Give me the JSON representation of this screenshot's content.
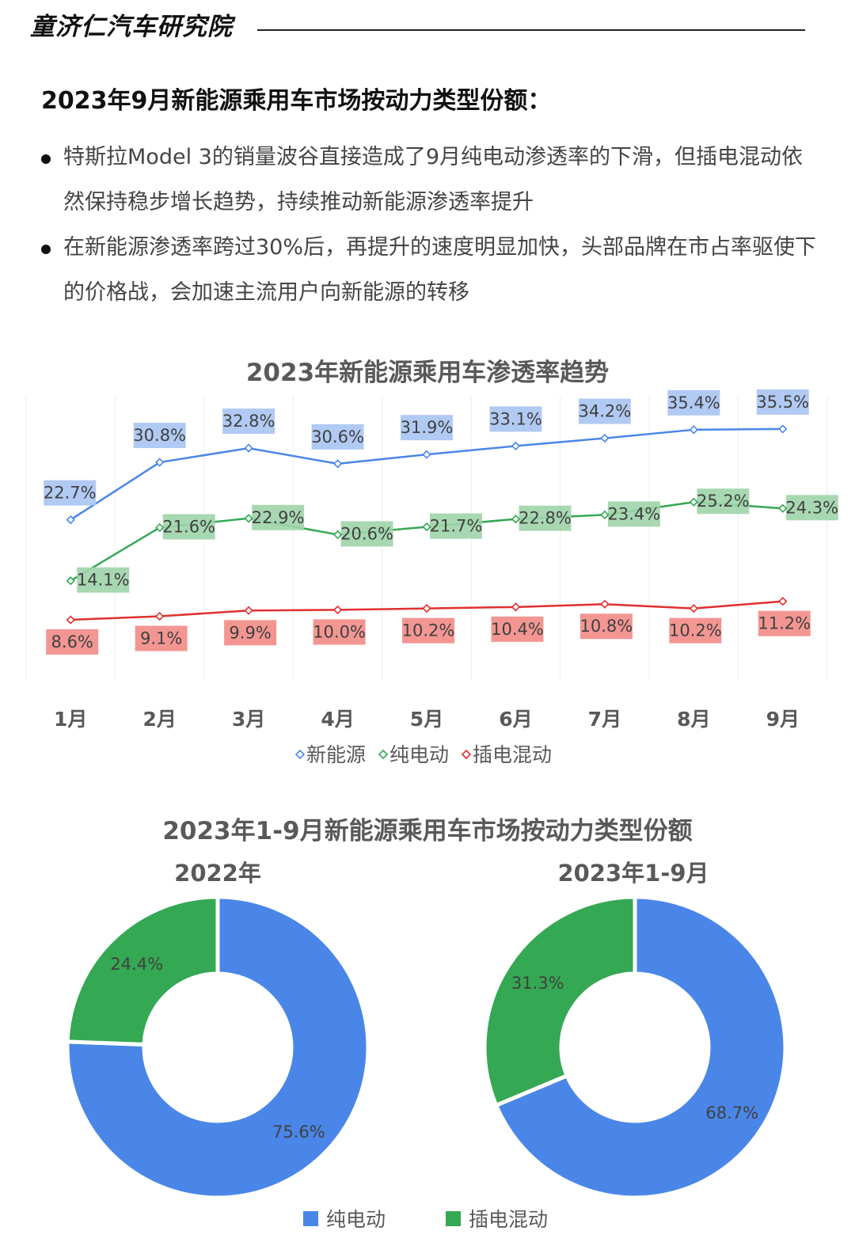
{
  "header": {
    "brand": "童济仁汽车研究院",
    "headline": "2023年9月新能源乘用车市场按动力类型份额："
  },
  "bullets": [
    "特斯拉Model 3的销量波谷直接造成了9月纯电动渗透率的下滑，但插电混动依然保持稳步增长趋势，持续推动新能源渗透率提升",
    "在新能源渗透率跨过30%后，再提升的速度明显加快，头部品牌在市占率驱使下的价格战，会加速主流用户向新能源的转移"
  ],
  "chart_data": [
    {
      "type": "line",
      "title": "2023年新能源乘用车渗透率趋势",
      "categories": [
        "1月",
        "2月",
        "3月",
        "4月",
        "5月",
        "6月",
        "7月",
        "8月",
        "9月"
      ],
      "series": [
        {
          "name": "新能源",
          "color": "#4a86e8",
          "label_bg": "#a9c4f2",
          "values": [
            22.7,
            30.8,
            32.8,
            30.6,
            31.9,
            33.1,
            34.2,
            35.4,
            35.5
          ],
          "labels": [
            "22.7%",
            "30.8%",
            "32.8%",
            "30.6%",
            "31.9%",
            "33.1%",
            "34.2%",
            "35.4%",
            "35.5%"
          ]
        },
        {
          "name": "纯电动",
          "color": "#34a853",
          "label_bg": "#9fd4aa",
          "values": [
            14.1,
            21.6,
            22.9,
            20.6,
            21.7,
            22.8,
            23.4,
            25.2,
            24.3
          ],
          "labels": [
            "14.1%",
            "21.6%",
            "22.9%",
            "20.6%",
            "21.7%",
            "22.8%",
            "23.4%",
            "25.2%",
            "24.3%"
          ]
        },
        {
          "name": "插电混动",
          "color": "#e0302e",
          "label_bg": "#f28b86",
          "values": [
            8.6,
            9.1,
            9.9,
            10.0,
            10.2,
            10.4,
            10.8,
            10.2,
            11.2
          ],
          "labels": [
            "8.6%",
            "9.1%",
            "9.9%",
            "10.0%",
            "10.2%",
            "10.4%",
            "10.8%",
            "10.2%",
            "11.2%"
          ]
        }
      ],
      "legend_position": "bottom",
      "grid": "vertical"
    },
    {
      "type": "pie",
      "title": "2023年1-9月新能源乘用车市场按动力类型份额",
      "donuts": [
        {
          "subtitle": "2022年",
          "slices": [
            {
              "name": "纯电动",
              "value": 75.6,
              "label": "75.6%",
              "color": "#4a86e8"
            },
            {
              "name": "插电混动",
              "value": 24.4,
              "label": "24.4%",
              "color": "#34a853"
            }
          ]
        },
        {
          "subtitle": "2023年1-9月",
          "slices": [
            {
              "name": "纯电动",
              "value": 68.7,
              "label": "68.7%",
              "color": "#4a86e8"
            },
            {
              "name": "插电混动",
              "value": 31.3,
              "label": "31.3%",
              "color": "#34a853"
            }
          ]
        }
      ],
      "legend": [
        {
          "name": "纯电动",
          "color": "#4a86e8"
        },
        {
          "name": "插电混动",
          "color": "#34a853"
        }
      ],
      "legend_position": "bottom"
    }
  ]
}
